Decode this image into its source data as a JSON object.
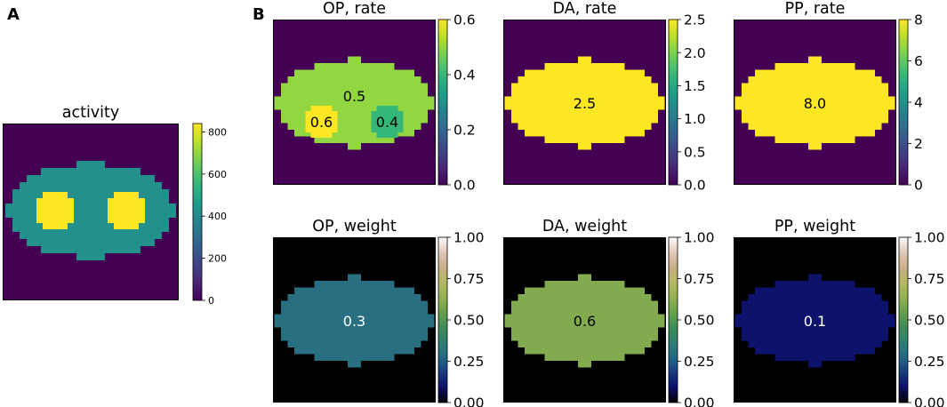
{
  "panel_labels": {
    "a": "A",
    "b": "B"
  },
  "colors": {
    "viridis": [
      "#440154",
      "#482878",
      "#3e4989",
      "#31688e",
      "#26828e",
      "#1f9e89",
      "#35b779",
      "#6ece58",
      "#b5de2b",
      "#fde725"
    ],
    "gist_earth": [
      "#000000",
      "#0c0f6b",
      "#17397e",
      "#246987",
      "#2f7e73",
      "#3f8c57",
      "#66a04b",
      "#95b251",
      "#b6ba63",
      "#c8ac86",
      "#e3c9b9",
      "#fdfbfb"
    ],
    "background_rate": "#440154",
    "background_weight": "#000000",
    "frame": "#000000"
  },
  "chart_data": [
    {
      "type": "heatmap",
      "title": "activity",
      "colormap": "viridis",
      "colorbar": {
        "range": [
          0,
          840
        ],
        "ticks": [
          "0",
          "200",
          "400",
          "600",
          "800"
        ]
      },
      "regions": [
        {
          "name": "background",
          "value": 0
        },
        {
          "name": "ellipse",
          "value": 420
        },
        {
          "name": "left-disk",
          "value": 840
        },
        {
          "name": "right-disk",
          "value": 840
        }
      ],
      "annotations": []
    },
    {
      "type": "heatmap",
      "title": "OP, rate",
      "colormap": "viridis",
      "colorbar": {
        "range": [
          0,
          0.6
        ],
        "ticks": [
          "0.0",
          "0.2",
          "0.4",
          "0.6"
        ]
      },
      "regions": [
        {
          "name": "background",
          "value": 0
        },
        {
          "name": "ellipse",
          "value": 0.5
        },
        {
          "name": "left-disk",
          "value": 0.6
        },
        {
          "name": "right-disk",
          "value": 0.4
        }
      ],
      "annotations": [
        {
          "text": "0.5",
          "target": "ellipse"
        },
        {
          "text": "0.6",
          "target": "left-disk"
        },
        {
          "text": "0.4",
          "target": "right-disk"
        }
      ]
    },
    {
      "type": "heatmap",
      "title": "DA, rate",
      "colormap": "viridis",
      "colorbar": {
        "range": [
          0,
          2.5
        ],
        "ticks": [
          "0.0",
          "0.5",
          "1.0",
          "1.5",
          "2.0",
          "2.5"
        ]
      },
      "regions": [
        {
          "name": "background",
          "value": 0
        },
        {
          "name": "ellipse",
          "value": 2.5
        }
      ],
      "annotations": [
        {
          "text": "2.5",
          "target": "ellipse"
        }
      ]
    },
    {
      "type": "heatmap",
      "title": "PP, rate",
      "colormap": "viridis",
      "colorbar": {
        "range": [
          0,
          8
        ],
        "ticks": [
          "0",
          "2",
          "4",
          "6",
          "8"
        ]
      },
      "regions": [
        {
          "name": "background",
          "value": 0
        },
        {
          "name": "ellipse",
          "value": 8.0
        }
      ],
      "annotations": [
        {
          "text": "8.0",
          "target": "ellipse"
        }
      ]
    },
    {
      "type": "heatmap",
      "title": "OP, weight",
      "colormap": "gist_earth",
      "colorbar": {
        "range": [
          0,
          1
        ],
        "ticks": [
          "0.00",
          "0.25",
          "0.50",
          "0.75",
          "1.00"
        ]
      },
      "regions": [
        {
          "name": "background",
          "value": 0
        },
        {
          "name": "ellipse",
          "value": 0.3
        }
      ],
      "annotations": [
        {
          "text": "0.3",
          "target": "ellipse"
        }
      ]
    },
    {
      "type": "heatmap",
      "title": "DA, weight",
      "colormap": "gist_earth",
      "colorbar": {
        "range": [
          0,
          1
        ],
        "ticks": [
          "0.00",
          "0.25",
          "0.50",
          "0.75",
          "1.00"
        ]
      },
      "regions": [
        {
          "name": "background",
          "value": 0
        },
        {
          "name": "ellipse",
          "value": 0.6
        }
      ],
      "annotations": [
        {
          "text": "0.6",
          "target": "ellipse"
        }
      ]
    },
    {
      "type": "heatmap",
      "title": "PP, weight",
      "colormap": "gist_earth",
      "colorbar": {
        "range": [
          0,
          1
        ],
        "ticks": [
          "0.00",
          "0.25",
          "0.50",
          "0.75",
          "1.00"
        ]
      },
      "regions": [
        {
          "name": "background",
          "value": 0
        },
        {
          "name": "ellipse",
          "value": 0.1
        }
      ],
      "annotations": [
        {
          "text": "0.1",
          "target": "ellipse"
        }
      ]
    }
  ]
}
